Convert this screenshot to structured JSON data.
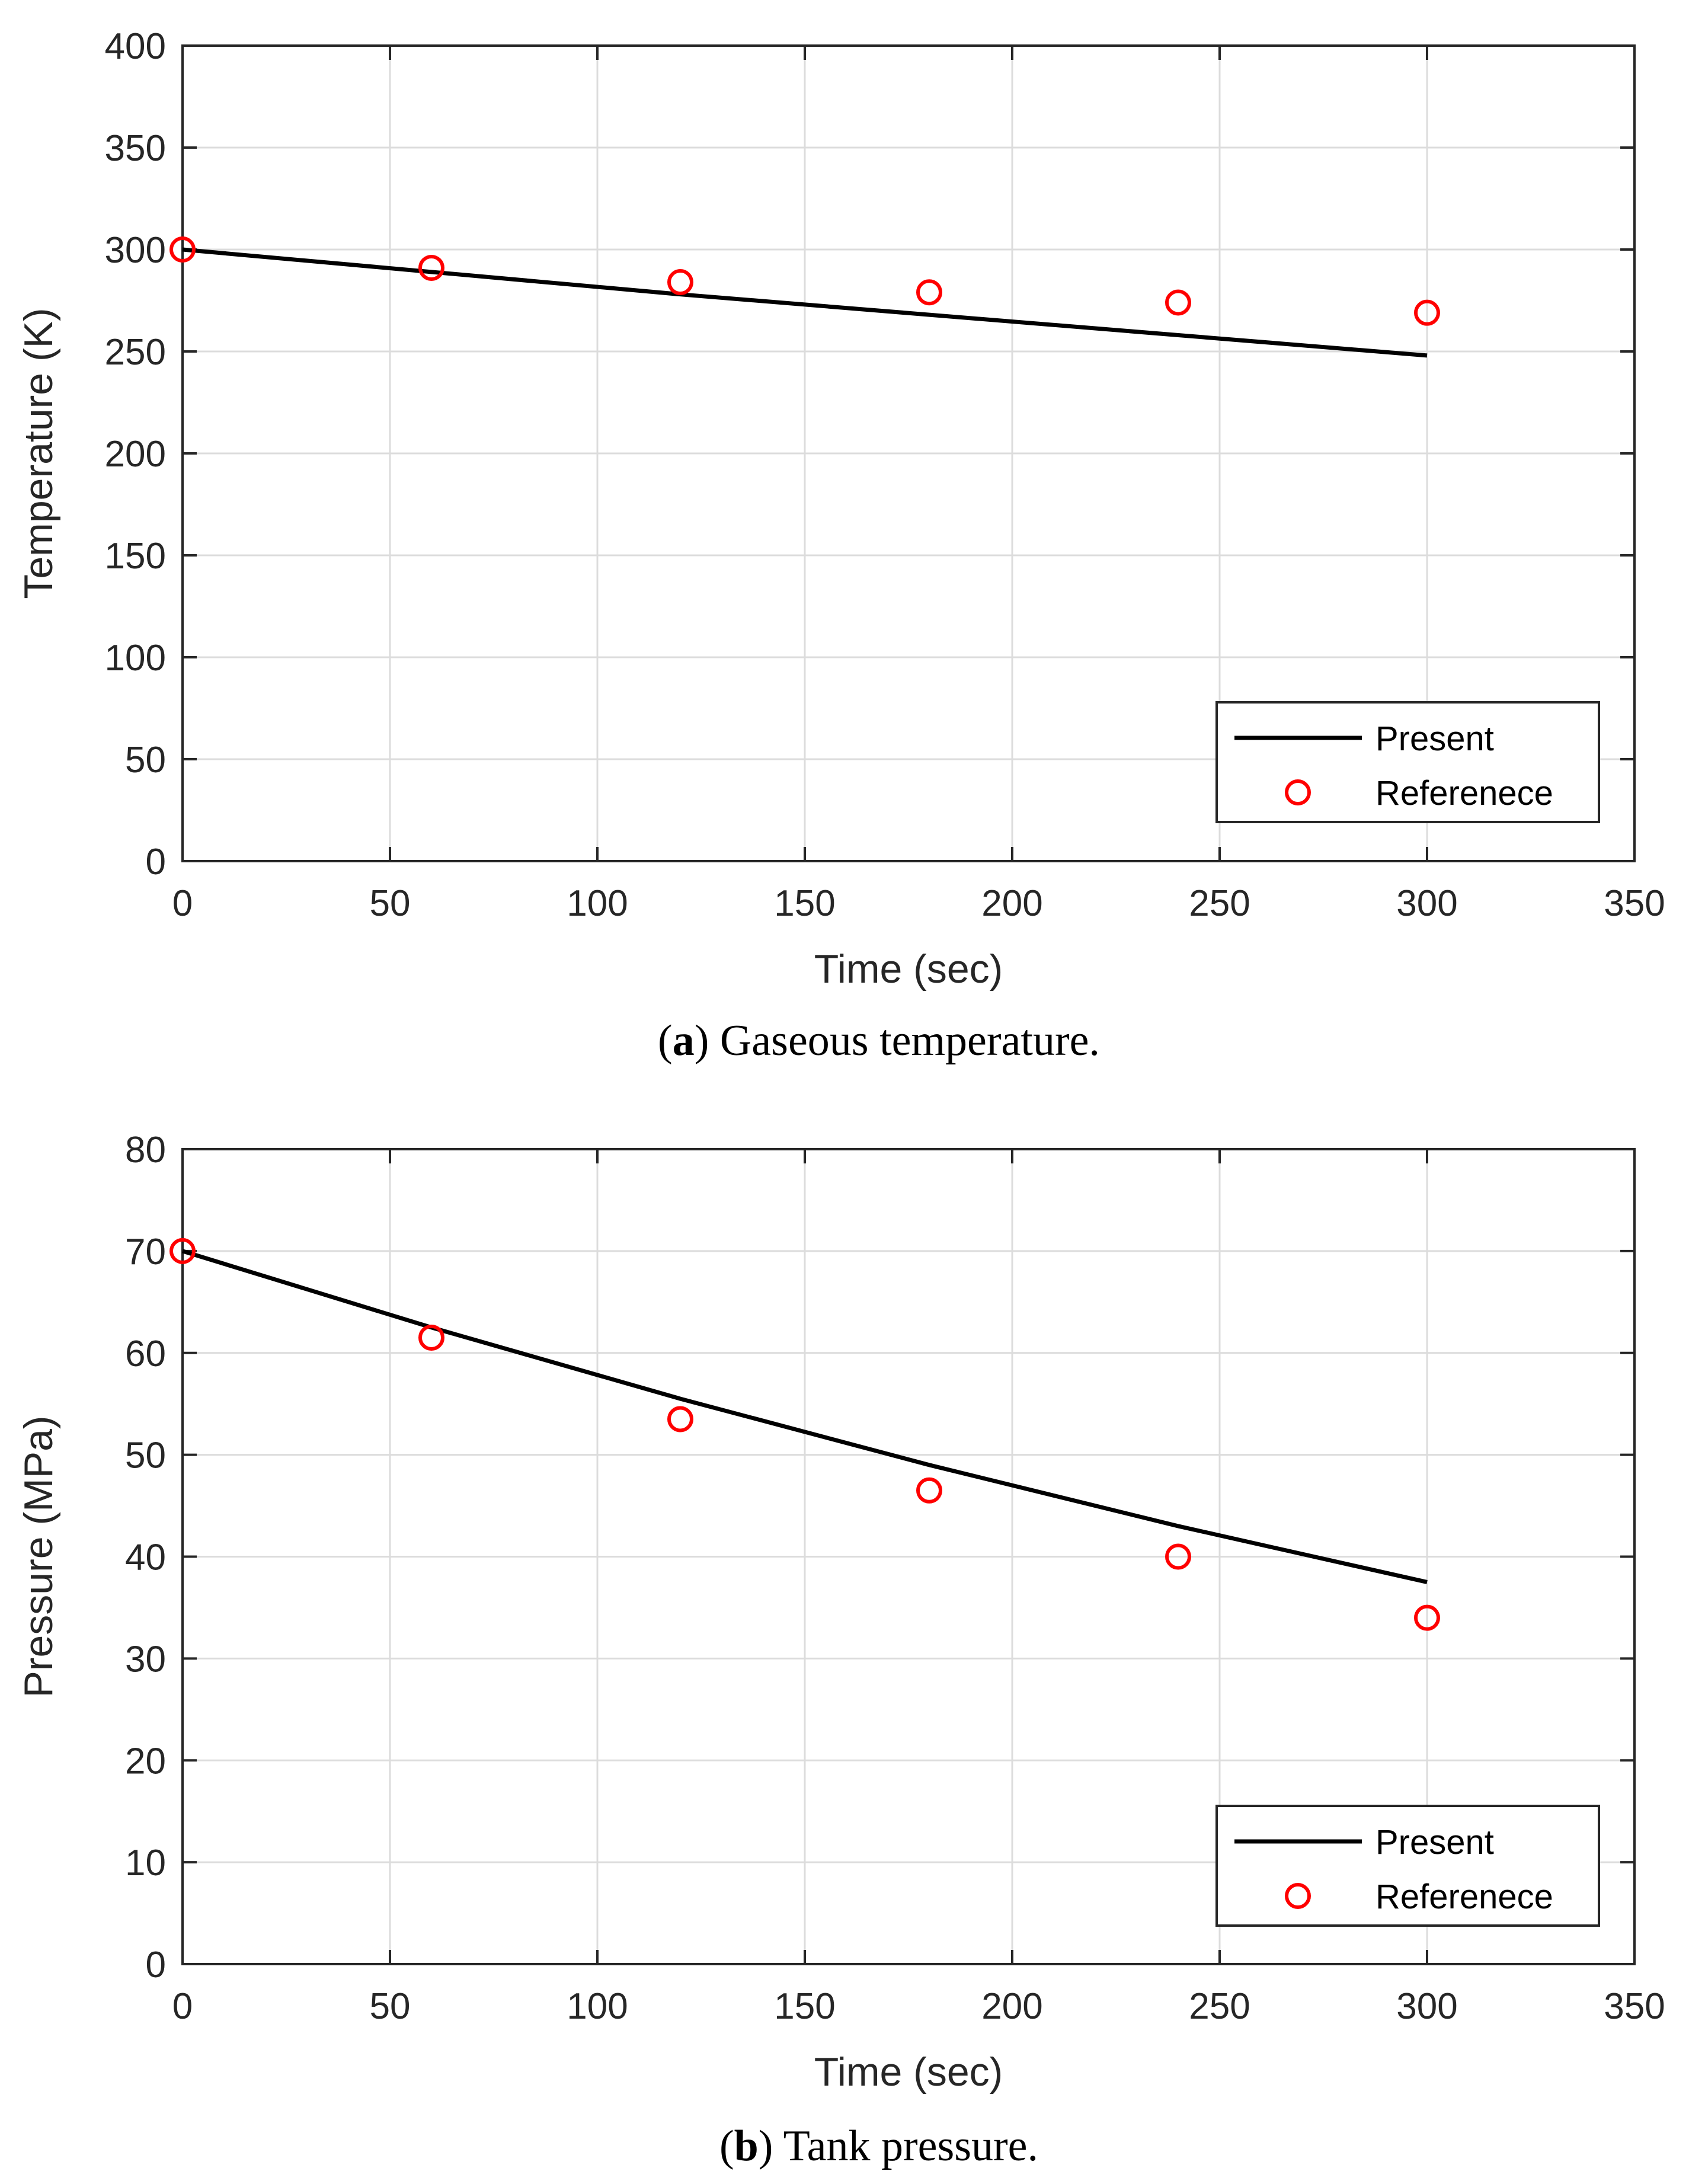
{
  "colors": {
    "present_line": "#000000",
    "reference_marker": "#ff0000",
    "grid": "#dcdcdc",
    "axes": "#262626"
  },
  "chart_data": [
    {
      "type": "line",
      "caption": {
        "letter": "a",
        "text": "Gaseous temperature."
      },
      "xlabel": "Time (sec)",
      "ylabel": "Temperature (K)",
      "xlim": [
        0,
        350
      ],
      "ylim": [
        0,
        400
      ],
      "xticks": [
        0,
        50,
        100,
        150,
        200,
        250,
        300,
        350
      ],
      "yticks": [
        0,
        50,
        100,
        150,
        200,
        250,
        300,
        350,
        400
      ],
      "grid": true,
      "legend": {
        "position": "bottom-right"
      },
      "series": [
        {
          "name": "Present",
          "style": "line",
          "x": [
            0,
            60,
            120,
            180,
            240,
            300
          ],
          "y": [
            300,
            289,
            278,
            268,
            258,
            248
          ]
        },
        {
          "name": "Referenece",
          "style": "marker",
          "x": [
            0,
            60,
            120,
            180,
            240,
            300
          ],
          "y": [
            300,
            291,
            284,
            279,
            274,
            269
          ]
        }
      ]
    },
    {
      "type": "line",
      "caption": {
        "letter": "b",
        "text": "Tank pressure."
      },
      "xlabel": "Time (sec)",
      "ylabel": "Pressure (MPa)",
      "xlim": [
        0,
        350
      ],
      "ylim": [
        0,
        80
      ],
      "xticks": [
        0,
        50,
        100,
        150,
        200,
        250,
        300,
        350
      ],
      "yticks": [
        0,
        10,
        20,
        30,
        40,
        50,
        60,
        70,
        80
      ],
      "grid": true,
      "legend": {
        "position": "bottom-right"
      },
      "series": [
        {
          "name": "Present",
          "style": "line",
          "x": [
            0,
            60,
            120,
            180,
            240,
            300
          ],
          "y": [
            70,
            62.5,
            55.5,
            49,
            43,
            37.5
          ]
        },
        {
          "name": "Referenece",
          "style": "marker",
          "x": [
            0,
            60,
            120,
            180,
            240,
            300
          ],
          "y": [
            70,
            61.5,
            53.5,
            46.5,
            40,
            34
          ]
        }
      ]
    }
  ]
}
